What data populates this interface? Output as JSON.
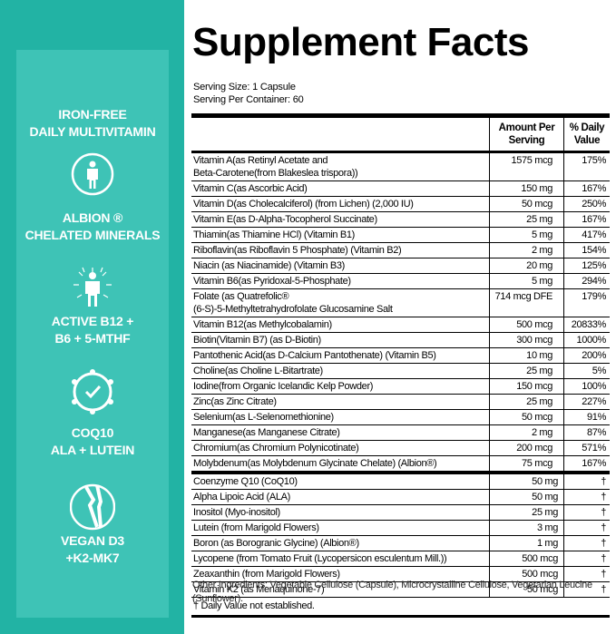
{
  "sidebar": {
    "features": [
      "IRON-FREE\nDAILY MULTIVITAMIN",
      "ALBION ®\nCHELATED MINERALS",
      "ACTIVE B12 +\nB6 + 5-MTHF",
      "COQ10\nALA + LUTEIN",
      "VEGAN D3\n+K2-MK7"
    ]
  },
  "header": {
    "title": "Supplement Facts",
    "serving_size": "Serving Size: 1 Capsule",
    "servings_per_container": "Serving Per Container: 60"
  },
  "table": {
    "columns": [
      "Amount Per\nServing",
      "% Daily\nValue"
    ],
    "groups": [
      {
        "rows": [
          [
            "Vitamin A(as Retinyl Acetate and\nBeta-Carotene(from Blakeslea trispora))",
            "1575 mcg",
            "175%"
          ],
          [
            "Vitamin C(as Ascorbic Acid)",
            "150 mg",
            "167%"
          ],
          [
            "Vitamin D(as Cholecalciferol) (from Lichen) (2,000 IU)",
            "50 mcg",
            "250%"
          ],
          [
            "Vitamin E(as D-Alpha-Tocopherol Succinate)",
            "25 mg",
            "167%"
          ],
          [
            "Thiamin(as Thiamine HCl) (Vitamin B1)",
            "5 mg",
            "417%"
          ],
          [
            "Riboflavin(as Riboflavin 5 Phosphate) (Vitamin B2)",
            "2 mg",
            "154%"
          ],
          [
            "Niacin (as Niacinamide) (Vitamin B3)",
            "20 mg",
            "125%"
          ],
          [
            "Vitamin B6(as Pyridoxal-5-Phosphate)",
            "5 mg",
            "294%"
          ],
          [
            "Folate (as Quatrefolic®\n(6-S)-5-Methyltetrahydrofolate Glucosamine Salt",
            "714 mcg DFE",
            "179%"
          ],
          [
            "Vitamin B12(as Methylcobalamin)",
            "500 mcg",
            "20833%"
          ],
          [
            "Biotin(Vitamin B7) (as D-Biotin)",
            "300 mcg",
            "1000%"
          ],
          [
            "Pantothenic Acid(as D-Calcium Pantothenate) (Vitamin B5)",
            "10 mg",
            "200%"
          ],
          [
            "Choline(as Choline L-Bitartrate)",
            "25 mg",
            "5%"
          ],
          [
            "Iodine(from Organic Icelandic Kelp Powder)",
            "150 mcg",
            "100%"
          ],
          [
            "Zinc(as Zinc Citrate)",
            "25 mg",
            "227%"
          ],
          [
            "Selenium(as L-Selenomethionine)",
            "50 mcg",
            "91%"
          ],
          [
            "Manganese(as Manganese Citrate)",
            "2 mg",
            "87%"
          ],
          [
            "Chromium(as Chromium Polynicotinate)",
            "200 mcg",
            "571%"
          ],
          [
            "Molybdenum(as Molybdenum Glycinate Chelate) (Albion®)",
            "75 mcg",
            "167%"
          ]
        ]
      },
      {
        "rows": [
          [
            "Coenzyme Q10 (CoQ10)",
            "50 mg",
            "†"
          ],
          [
            "Alpha Lipoic Acid (ALA)",
            "50 mg",
            "†"
          ],
          [
            "Inositol (Myo-inositol)",
            "25 mg",
            "†"
          ],
          [
            "Lutein (from Marigold Flowers)",
            "3 mg",
            "†"
          ],
          [
            "Boron (as Borogranic Glycine) (Albion®)",
            "1 mg",
            "†"
          ],
          [
            "Lycopene (from Tomato Fruit (Lycopersicon esculentum Mill.))",
            "500 mcg",
            "†"
          ],
          [
            "Zeaxanthin (from Marigold Flowers)",
            "500 mcg",
            "†"
          ],
          [
            "Vitamin K2 (as Menaquinone-7)",
            "50 mcg",
            "†"
          ]
        ]
      }
    ],
    "footnote": "† Daily Value not established."
  },
  "other_ingredients": "Other Ingredients: Vegetable Cellulose (Capsule), Microcrystalline Cellulose, Vegetarian Leucine (Sunflower)."
}
